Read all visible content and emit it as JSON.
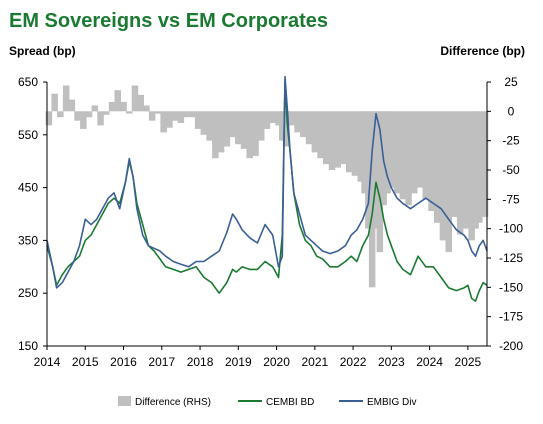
{
  "chart_data": {
    "type": "line",
    "title": "EM Sovereigns vs EM Corporates",
    "ylabel_left": "Spread (bp)",
    "ylabel_right": "Difference (bp)",
    "x_ticks": [
      "2014",
      "2015",
      "2016",
      "2017",
      "2018",
      "2019",
      "2020",
      "2021",
      "2022",
      "2023",
      "2024",
      "2025"
    ],
    "xlim": [
      2014.0,
      2025.5
    ],
    "ylim_left": [
      150,
      650
    ],
    "yticks_left": [
      150,
      250,
      350,
      450,
      550,
      650
    ],
    "ylim_right": [
      -200,
      25
    ],
    "yticks_right": [
      25,
      0,
      -25,
      -50,
      -75,
      -100,
      -125,
      -150,
      -175,
      -200
    ],
    "legend_position": "bottom",
    "grid": false,
    "colors": {
      "difference": "#bfbfbf",
      "cembi": "#1a7a32",
      "embig": "#3a5f96",
      "title": "#1a7a32"
    },
    "series": [
      {
        "name": "Difference (RHS)",
        "axis": "right",
        "style": "bar",
        "x": [
          2014.05,
          2014.2,
          2014.35,
          2014.5,
          2014.65,
          2014.8,
          2014.95,
          2015.1,
          2015.25,
          2015.4,
          2015.55,
          2015.7,
          2015.85,
          2016.0,
          2016.15,
          2016.3,
          2016.45,
          2016.6,
          2016.75,
          2016.9,
          2017.05,
          2017.2,
          2017.35,
          2017.5,
          2017.65,
          2017.8,
          2017.95,
          2018.1,
          2018.25,
          2018.4,
          2018.55,
          2018.7,
          2018.85,
          2019.0,
          2019.15,
          2019.3,
          2019.45,
          2019.6,
          2019.75,
          2019.9,
          2020.05,
          2020.15,
          2020.25,
          2020.3,
          2020.4,
          2020.55,
          2020.7,
          2020.85,
          2021.0,
          2021.15,
          2021.3,
          2021.45,
          2021.6,
          2021.75,
          2021.9,
          2022.05,
          2022.2,
          2022.3,
          2022.4,
          2022.5,
          2022.6,
          2022.7,
          2022.8,
          2022.9,
          2023.0,
          2023.15,
          2023.3,
          2023.45,
          2023.6,
          2023.75,
          2023.9,
          2024.05,
          2024.2,
          2024.35,
          2024.5,
          2024.65,
          2024.8,
          2024.95,
          2025.1,
          2025.2,
          2025.3,
          2025.45
        ],
        "values": [
          -12,
          15,
          -5,
          22,
          10,
          -8,
          -15,
          -5,
          5,
          -12,
          -3,
          8,
          18,
          8,
          -2,
          22,
          14,
          5,
          -8,
          -2,
          -18,
          -14,
          -8,
          -10,
          -5,
          -5,
          -15,
          -20,
          -25,
          -40,
          -35,
          -30,
          -22,
          -28,
          -32,
          -40,
          -38,
          -25,
          -15,
          -10,
          -12,
          -25,
          -30,
          -5,
          -12,
          -18,
          -22,
          -28,
          -35,
          -40,
          -45,
          -50,
          -48,
          -45,
          -52,
          -55,
          -60,
          -70,
          -100,
          -150,
          -100,
          -120,
          -80,
          -70,
          -65,
          -70,
          -75,
          -80,
          -70,
          -65,
          -75,
          -85,
          -95,
          -110,
          -120,
          -90,
          -105,
          -100,
          -110,
          -100,
          -95,
          -90
        ]
      },
      {
        "name": "CEMBI BD",
        "axis": "left",
        "style": "line",
        "x": [
          2014.0,
          2014.15,
          2014.25,
          2014.4,
          2014.55,
          2014.7,
          2014.85,
          2015.0,
          2015.15,
          2015.3,
          2015.45,
          2015.6,
          2015.75,
          2015.9,
          2016.05,
          2016.15,
          2016.25,
          2016.35,
          2016.5,
          2016.65,
          2016.8,
          2016.95,
          2017.1,
          2017.3,
          2017.5,
          2017.7,
          2017.9,
          2018.1,
          2018.3,
          2018.5,
          2018.7,
          2018.85,
          2018.95,
          2019.1,
          2019.3,
          2019.5,
          2019.7,
          2019.9,
          2020.05,
          2020.15,
          2020.22,
          2020.28,
          2020.35,
          2020.45,
          2020.6,
          2020.75,
          2020.9,
          2021.05,
          2021.2,
          2021.4,
          2021.6,
          2021.8,
          2021.95,
          2022.1,
          2022.25,
          2022.4,
          2022.5,
          2022.6,
          2022.7,
          2022.8,
          2022.9,
          2023.0,
          2023.15,
          2023.3,
          2023.5,
          2023.7,
          2023.9,
          2024.1,
          2024.3,
          2024.5,
          2024.7,
          2024.9,
          2025.0,
          2025.1,
          2025.2,
          2025.3,
          2025.4,
          2025.5
        ],
        "values": [
          340,
          300,
          265,
          285,
          300,
          310,
          320,
          350,
          360,
          380,
          400,
          420,
          430,
          420,
          460,
          500,
          470,
          420,
          380,
          340,
          330,
          315,
          300,
          295,
          290,
          295,
          300,
          280,
          270,
          250,
          270,
          295,
          290,
          300,
          295,
          295,
          310,
          300,
          280,
          360,
          650,
          570,
          520,
          440,
          380,
          350,
          340,
          320,
          315,
          300,
          300,
          310,
          320,
          310,
          340,
          360,
          400,
          460,
          430,
          390,
          360,
          340,
          310,
          295,
          285,
          320,
          300,
          300,
          280,
          260,
          255,
          260,
          265,
          240,
          235,
          255,
          270,
          265
        ]
      },
      {
        "name": "EMBIG Div",
        "axis": "left",
        "style": "line",
        "x": [
          2014.0,
          2014.15,
          2014.25,
          2014.4,
          2014.55,
          2014.7,
          2014.85,
          2015.0,
          2015.15,
          2015.3,
          2015.45,
          2015.6,
          2015.75,
          2015.9,
          2016.05,
          2016.15,
          2016.25,
          2016.35,
          2016.5,
          2016.65,
          2016.8,
          2016.95,
          2017.1,
          2017.3,
          2017.5,
          2017.7,
          2017.9,
          2018.1,
          2018.3,
          2018.5,
          2018.7,
          2018.85,
          2018.95,
          2019.1,
          2019.3,
          2019.5,
          2019.7,
          2019.9,
          2020.05,
          2020.15,
          2020.22,
          2020.28,
          2020.35,
          2020.45,
          2020.6,
          2020.75,
          2020.9,
          2021.05,
          2021.2,
          2021.4,
          2021.6,
          2021.8,
          2021.95,
          2022.1,
          2022.25,
          2022.4,
          2022.5,
          2022.6,
          2022.7,
          2022.8,
          2022.9,
          2023.0,
          2023.15,
          2023.3,
          2023.5,
          2023.7,
          2023.9,
          2024.1,
          2024.3,
          2024.5,
          2024.7,
          2024.9,
          2025.0,
          2025.1,
          2025.2,
          2025.3,
          2025.4,
          2025.5
        ],
        "values": [
          350,
          300,
          260,
          270,
          290,
          310,
          340,
          390,
          380,
          390,
          410,
          430,
          440,
          410,
          460,
          505,
          470,
          410,
          360,
          340,
          335,
          330,
          320,
          310,
          305,
          300,
          310,
          310,
          320,
          330,
          365,
          400,
          390,
          370,
          355,
          345,
          380,
          360,
          300,
          320,
          660,
          600,
          520,
          440,
          400,
          360,
          350,
          340,
          330,
          325,
          330,
          340,
          360,
          370,
          390,
          420,
          520,
          590,
          560,
          500,
          470,
          450,
          430,
          420,
          410,
          420,
          430,
          420,
          410,
          390,
          370,
          360,
          350,
          330,
          320,
          340,
          350,
          330
        ]
      }
    ]
  }
}
